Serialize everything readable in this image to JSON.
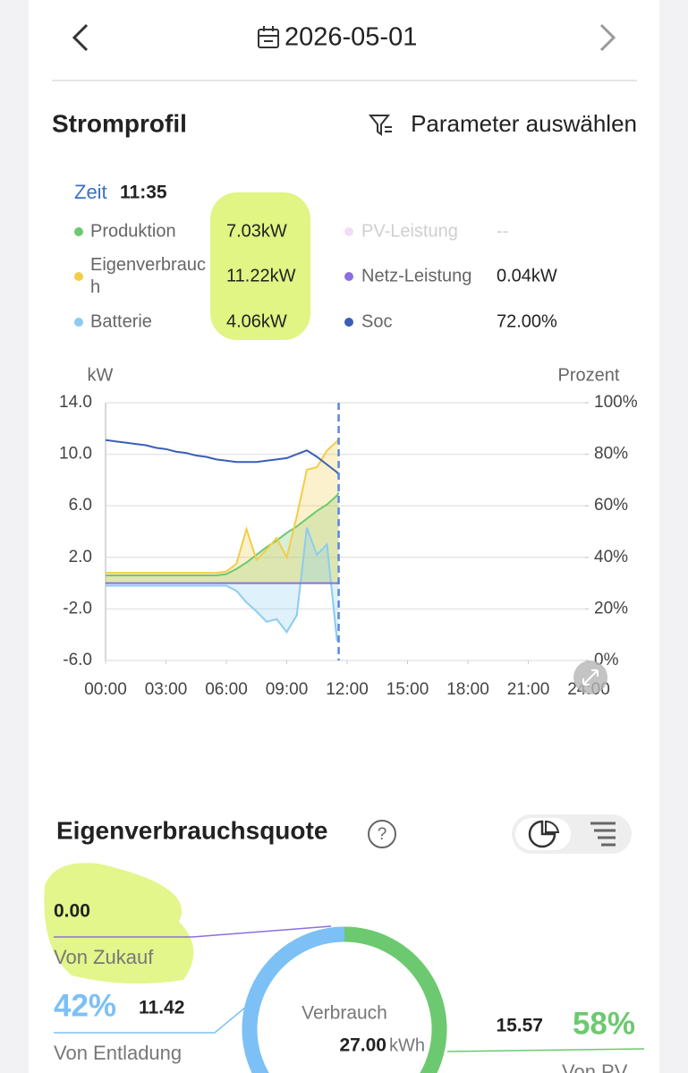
{
  "header": {
    "date": "2026-05-01"
  },
  "power_profile": {
    "title": "Stromprofil",
    "parameter_button": "Parameter auswählen",
    "readout": {
      "time_label": "Zeit",
      "time": "11:35",
      "items": [
        {
          "name": "Produktion",
          "value": "7.03kW",
          "color": "#6cc96f"
        },
        {
          "name": "PV-Leistung",
          "value": "--",
          "color": "#f3dcf7",
          "muted": true
        },
        {
          "name": "Eigenverbrauch",
          "value": "11.22kW",
          "color": "#f2cd4a"
        },
        {
          "name": "Netz-Leistung",
          "value": "0.04kW",
          "color": "#8a6fe0"
        },
        {
          "name": "Batterie",
          "value": "4.06kW",
          "color": "#8ccbf2"
        },
        {
          "name": "Soc",
          "value": "72.00%",
          "color": "#3a5fb5"
        }
      ]
    }
  },
  "self_consumption": {
    "title": "Eigenverbrauchsquote"
  },
  "chart_data": [
    {
      "type": "line",
      "y_label": "kW",
      "y2_label": "Prozent",
      "x": [
        0,
        0.5,
        1,
        1.5,
        2,
        2.5,
        3,
        3.5,
        4,
        4.5,
        5,
        5.5,
        6,
        6.5,
        7,
        7.5,
        8,
        8.5,
        9,
        9.5,
        10,
        10.5,
        11,
        11.5,
        11.58
      ],
      "xlim": [
        0,
        24
      ],
      "xticks": [
        {
          "value": 0,
          "label": "00:00"
        },
        {
          "value": 3,
          "label": "03:00"
        },
        {
          "value": 6,
          "label": "06:00"
        },
        {
          "value": 9,
          "label": "09:00"
        },
        {
          "value": 12,
          "label": "12:00"
        },
        {
          "value": 15,
          "label": "15:00"
        },
        {
          "value": 18,
          "label": "18:00"
        },
        {
          "value": 21,
          "label": "21:00"
        },
        {
          "value": 24,
          "label": "24:00"
        }
      ],
      "ylim": [
        -6,
        14
      ],
      "yticks": [
        {
          "value": 14,
          "label": "14.0"
        },
        {
          "value": 10,
          "label": "10.0"
        },
        {
          "value": 6,
          "label": "6.0"
        },
        {
          "value": 2,
          "label": "2.0"
        },
        {
          "value": -2,
          "label": "-2.0"
        },
        {
          "value": -6,
          "label": "-6.0"
        }
      ],
      "y2lim": [
        0,
        100
      ],
      "y2ticks": [
        {
          "value": 100,
          "label": "100%"
        },
        {
          "value": 80,
          "label": "80%"
        },
        {
          "value": 60,
          "label": "60%"
        },
        {
          "value": 40,
          "label": "40%"
        },
        {
          "value": 20,
          "label": "20%"
        },
        {
          "value": 0,
          "label": "0%"
        }
      ],
      "grid": true,
      "series": [
        {
          "color": "#6cc96f",
          "fill": true,
          "values": [
            0.6,
            0.6,
            0.6,
            0.6,
            0.6,
            0.6,
            0.6,
            0.6,
            0.6,
            0.6,
            0.6,
            0.6,
            0.7,
            1.1,
            1.6,
            2.2,
            2.8,
            3.3,
            3.9,
            4.4,
            5.0,
            5.6,
            6.1,
            6.8,
            7.03
          ]
        },
        {
          "color": "#f2cd4a",
          "fill": true,
          "values": [
            0.8,
            0.8,
            0.8,
            0.8,
            0.8,
            0.8,
            0.8,
            0.8,
            0.8,
            0.8,
            0.8,
            0.8,
            0.9,
            1.5,
            4.2,
            1.8,
            2.6,
            3.5,
            2.0,
            5.2,
            8.8,
            9.0,
            10.3,
            11.0,
            11.22
          ]
        },
        {
          "color": "#8ccbf2",
          "fill": true,
          "values": [
            -0.2,
            -0.2,
            -0.2,
            -0.2,
            -0.2,
            -0.2,
            -0.2,
            -0.2,
            -0.2,
            -0.2,
            -0.2,
            -0.2,
            -0.2,
            -0.6,
            -1.5,
            -2.2,
            -3.0,
            -2.8,
            -3.8,
            -2.5,
            4.3,
            2.2,
            3.0,
            -4.5,
            -4.06
          ]
        },
        {
          "color": "#8a6fe0",
          "values": [
            0,
            0,
            0,
            0,
            0,
            0,
            0,
            0,
            0,
            0,
            0,
            0,
            0,
            0,
            0,
            0,
            0,
            0,
            0,
            0,
            0,
            0,
            0,
            0,
            0.04
          ]
        },
        {
          "color": "#3a5fb5",
          "axis": "y2",
          "values": [
            85.5,
            85,
            84.5,
            84,
            83.5,
            82.5,
            82,
            81,
            80.5,
            79.5,
            79,
            78,
            77.5,
            77,
            77,
            77,
            77.5,
            78,
            78.5,
            80,
            81.5,
            79,
            76,
            73,
            72
          ]
        }
      ]
    },
    {
      "type": "donut",
      "center_label": "Verbrauch",
      "total": "27.00",
      "unit": "kWh",
      "categories": [
        "Von Zukauf",
        "Von Entladung",
        "Von PV"
      ],
      "values": [
        0,
        11.42,
        15.57
      ],
      "value_labels": [
        "0.00",
        "11.42",
        "15.57"
      ],
      "share_labels": [
        null,
        "42%",
        "58%"
      ],
      "colors": [
        "#8a6fe0",
        "#7cc0f5",
        "#6cc96f"
      ]
    }
  ]
}
